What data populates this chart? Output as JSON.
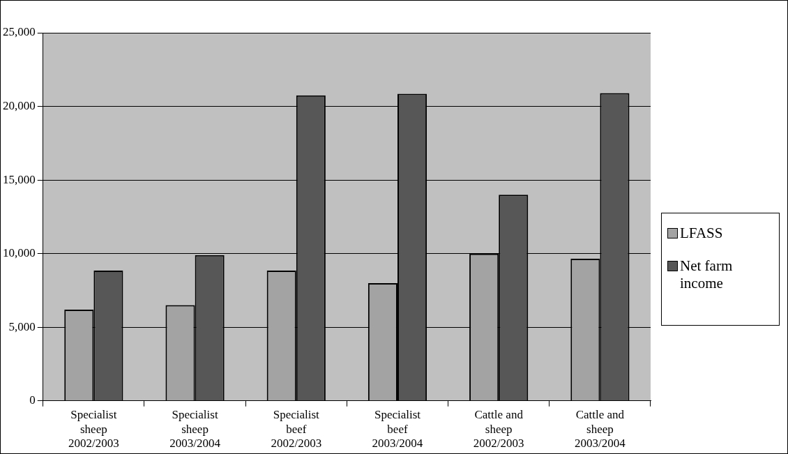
{
  "chart_data": {
    "type": "bar",
    "categories": [
      "Specialist\nsheep\n2002/2003",
      "Specialist\nsheep\n2003/2004",
      "Specialist\nbeef\n2002/2003",
      "Specialist\nbeef\n2003/2004",
      "Cattle and\nsheep\n2002/2003",
      "Cattle and\nsheep\n2003/2004"
    ],
    "series": [
      {
        "name": "LFASS",
        "color": "#a3a3a3",
        "values": [
          6200,
          6500,
          8850,
          8000,
          10000,
          9650
        ]
      },
      {
        "name": "Net farm income",
        "color": "#575757",
        "values": [
          8850,
          9900,
          20750,
          20850,
          14000,
          20900
        ]
      }
    ],
    "ylim": [
      0,
      25000
    ],
    "yticks": [
      {
        "value": 0,
        "label": "0"
      },
      {
        "value": 5000,
        "label": "5,000"
      },
      {
        "value": 10000,
        "label": "10,000"
      },
      {
        "value": 15000,
        "label": "15,000"
      },
      {
        "value": 20000,
        "label": "20,000"
      },
      {
        "value": 25000,
        "label": "25,000"
      }
    ],
    "grid": "y",
    "legend": "right"
  }
}
